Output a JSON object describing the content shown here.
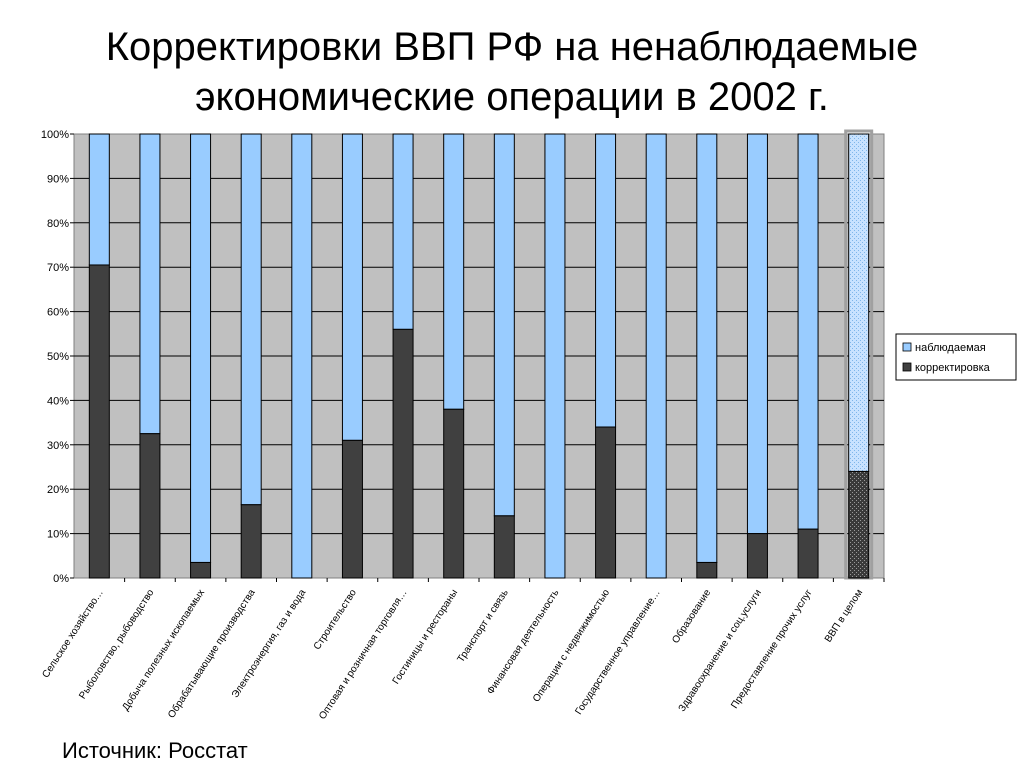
{
  "slide": {
    "title_line1": "Корректировки ВВП РФ на ненаблюдаемые",
    "title_line2": "экономические операции в 2002 г.",
    "source": "Источник: Росстат"
  },
  "chart_data": {
    "type": "bar",
    "stacked": "percent",
    "categories": [
      "Сельское хозяйство…",
      "Рыболовство, рыбоводство",
      "Добыча полезных ископаемых",
      "Обрабатывающие производства",
      "Электроэнергия, газ и вода",
      "Строительство",
      "Оптовая и розничная торговля…",
      "Гостиницы и рестораны",
      "Транспорт и связь",
      "Финансовая деятельность",
      "Операции с недвижимостью",
      "Государственное управление…",
      "Образование",
      "Здравоохранение и соц.услуги",
      "Предоставление прочих услуг",
      "ВВП в целом"
    ],
    "series": [
      {
        "name": "корректировка",
        "color": "#404040",
        "values": [
          70.5,
          32.5,
          3.5,
          16.5,
          0,
          31,
          56,
          38,
          14,
          0,
          34,
          0,
          3.5,
          10,
          11,
          24
        ]
      },
      {
        "name": "наблюдаемая",
        "color": "#99ccff",
        "values": [
          29.5,
          67.5,
          96.5,
          83.5,
          100,
          69,
          44,
          62,
          86,
          100,
          66,
          100,
          96.5,
          90,
          89,
          76
        ]
      }
    ],
    "y_ticks": [
      "0%",
      "10%",
      "20%",
      "30%",
      "40%",
      "50%",
      "60%",
      "70%",
      "80%",
      "90%",
      "100%"
    ],
    "ylim": [
      0,
      100
    ],
    "grid": true,
    "legend_position": "right",
    "legend": [
      "наблюдаемая",
      "корректировка"
    ],
    "plot_background": "#c0c0c0"
  }
}
